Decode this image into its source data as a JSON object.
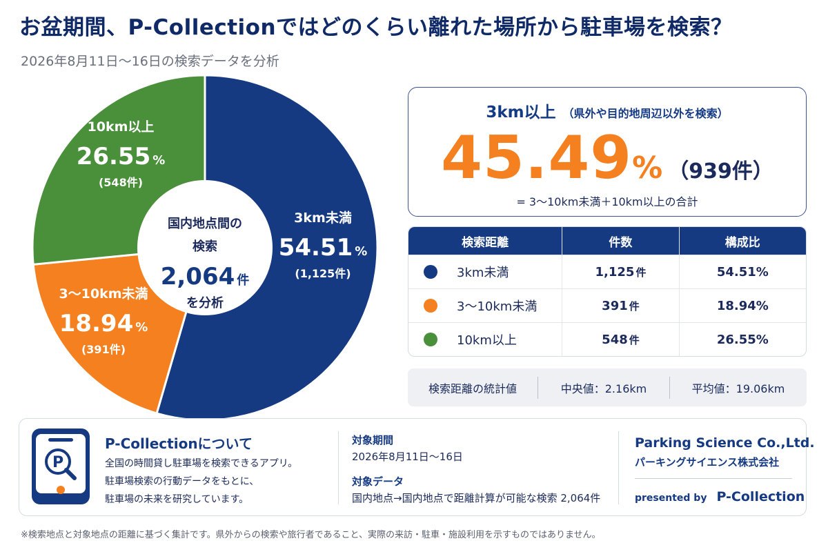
{
  "title": "お盆期間、P-Collectionではどのくらい離れた場所から駐車場を検索？",
  "subtitle": "2026年8月11日～16日の検索データを分析",
  "colors": {
    "navy": "#153a82",
    "orange": "#f4801f",
    "green": "#4a8f3a"
  },
  "chart_data": {
    "type": "pie",
    "categories": [
      "3km未満",
      "3～10km未満",
      "10km以上"
    ],
    "values": [
      54.51,
      18.94,
      26.55
    ],
    "counts": [
      "(1,125件)",
      "(391件)",
      "(548件)"
    ],
    "value_labels": [
      "54.51",
      "18.94",
      "26.55"
    ],
    "percent_sign": "%",
    "center": {
      "line1": "国内地点間の",
      "line2": "検索",
      "total": "2,064",
      "unit": "件",
      "line4": "を分析"
    }
  },
  "highlight": {
    "label": "3km以上",
    "note": "（県外や目的地周辺以外を検索）",
    "value": "45.49",
    "unit": "%",
    "count": "（939件）",
    "formula": "= 3～10km未満＋10km以上の合計"
  },
  "table": {
    "headers": [
      "検索距離",
      "件数",
      "構成比"
    ],
    "unit": "件",
    "rows": [
      {
        "label": "3km未満",
        "count": "1,125",
        "share": "54.51%",
        "color": "#153a82"
      },
      {
        "label": "3～10km未満",
        "count": "391",
        "share": "18.94%",
        "color": "#f4801f"
      },
      {
        "label": "10km以上",
        "count": "548",
        "share": "26.55%",
        "color": "#4a8f3a"
      }
    ]
  },
  "stats": {
    "label": "検索距離の統計値",
    "median": "中央値：2.16km",
    "mean": "平均値：19.06km"
  },
  "about": {
    "title": "P-Collectionについて",
    "lines": [
      "全国の時間貸し駐車場を検索できるアプリ。",
      "駐車場検索の行動データをもとに、",
      "駐車場の未来を研究しています。"
    ],
    "icon": "parking-search-icon"
  },
  "period": {
    "label": "対象期間",
    "value": "2026年8月11日～16日"
  },
  "target": {
    "label": "対象データ",
    "value": "国内地点→国内地点で距離計算が可能な検索 2,064件"
  },
  "company": {
    "name_en": "Parking Science Co.,Ltd.",
    "name_ja": "パーキングサイエンス株式会社",
    "presented_by": "presented by",
    "brand": "P-Collection"
  },
  "footnote": "※検索地点と対象地点の距離に基づく集計です。県外からの検索や旅行者であること、実際の来訪・駐車・施設利用を示すものではありません。"
}
